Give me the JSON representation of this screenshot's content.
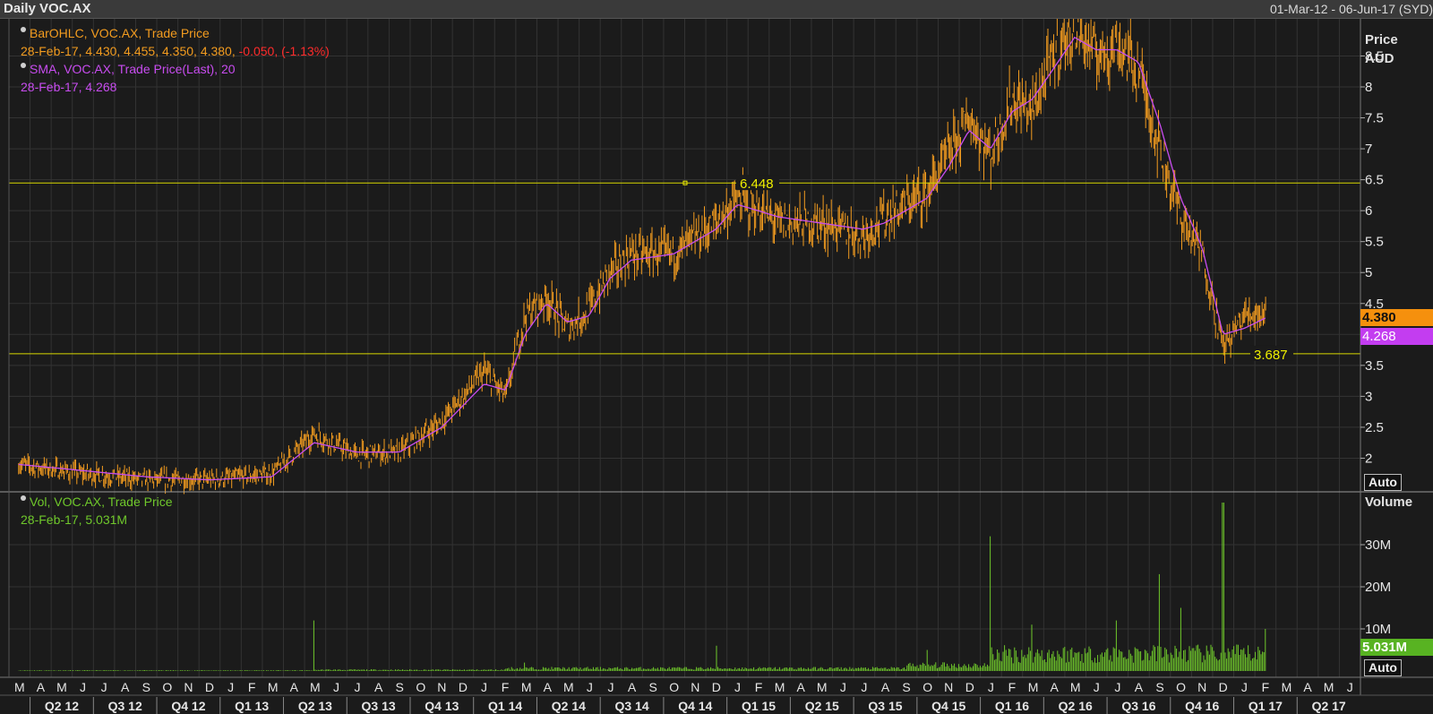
{
  "window": {
    "title": "Daily VOC.AX",
    "date_range": "01-Mar-12 - 06-Jun-17 (SYD)"
  },
  "legend": {
    "price_series": "BarOHLC, VOC.AX, Trade Price",
    "price_values": "28-Feb-17, 4.430, 4.455, 4.350, 4.380,",
    "price_change": "-0.050, (-1.13%)",
    "sma_series": "SMA, VOC.AX, Trade Price(Last),  20",
    "sma_values": "28-Feb-17, 4.268",
    "vol_series": "Vol, VOC.AX, Trade Price",
    "vol_values": "28-Feb-17, 5.031M"
  },
  "axes": {
    "price_title": "Price",
    "price_unit": "AUD",
    "volume_title": "Volume",
    "auto_label": "Auto",
    "price_ticks": [
      "2",
      "2.5",
      "3",
      "3.5",
      "4",
      "4.5",
      "5",
      "5.5",
      "6",
      "6.5",
      "7",
      "7.5",
      "8",
      "8.5"
    ],
    "volume_ticks": [
      "10M",
      "20M",
      "30M"
    ]
  },
  "tags": {
    "last_price": "4.380",
    "sma": "4.268",
    "volume": "5.031M"
  },
  "colors": {
    "background": "#1b1b1b",
    "grid": "#333333",
    "price_bars": "#f39c1f",
    "sma_line": "#c84cf0",
    "volume_bars": "#6fc82b",
    "hline": "#d8d800",
    "negative": "#ff2b2b"
  },
  "chart_data": [
    {
      "type": "line",
      "title": "Daily VOC.AX",
      "ylabel": "Price AUD",
      "ylim": [
        1.5,
        9.1
      ],
      "x_months": [
        "M",
        "A",
        "M",
        "J",
        "J",
        "A",
        "S",
        "O",
        "N",
        "D",
        "J",
        "F",
        "M",
        "A",
        "M",
        "J",
        "J",
        "A",
        "S",
        "O",
        "N",
        "D",
        "J",
        "F",
        "M",
        "A",
        "M",
        "J",
        "J",
        "A",
        "S",
        "O",
        "N",
        "D",
        "J",
        "F",
        "M",
        "A",
        "M",
        "J",
        "J",
        "A",
        "S",
        "O",
        "N",
        "D",
        "J",
        "F",
        "M",
        "A",
        "M",
        "J",
        "J",
        "A",
        "S",
        "O",
        "N",
        "D",
        "J",
        "F",
        "M",
        "A",
        "M",
        "J"
      ],
      "x_quarters": [
        "Q2 12",
        "Q3 12",
        "Q4 12",
        "Q1 13",
        "Q2 13",
        "Q3 13",
        "Q4 13",
        "Q1 14",
        "Q2 14",
        "Q3 14",
        "Q4 14",
        "Q1 15",
        "Q2 15",
        "Q3 15",
        "Q4 15",
        "Q1 16",
        "Q2 16",
        "Q3 16",
        "Q4 16",
        "Q1 17",
        "Q2 17"
      ],
      "series": [
        {
          "name": "BarOHLC, VOC.AX, Trade Price",
          "x": [
            "2012-03",
            "2012-06",
            "2012-09",
            "2012-12",
            "2013-03",
            "2013-05",
            "2013-07",
            "2013-09",
            "2013-11",
            "2014-01",
            "2014-02",
            "2014-03",
            "2014-04",
            "2014-05",
            "2014-06",
            "2014-07",
            "2014-08",
            "2014-10",
            "2014-12",
            "2015-01",
            "2015-03",
            "2015-05",
            "2015-07",
            "2015-08",
            "2015-10",
            "2015-11",
            "2015-12",
            "2016-01",
            "2016-02",
            "2016-03",
            "2016-04",
            "2016-05",
            "2016-06",
            "2016-07",
            "2016-08",
            "2016-09",
            "2016-10",
            "2016-11",
            "2016-12",
            "2017-01",
            "2017-02"
          ],
          "values": [
            1.9,
            1.75,
            1.65,
            1.65,
            1.75,
            2.4,
            2.05,
            2.1,
            2.6,
            3.4,
            3.0,
            4.3,
            4.6,
            4.1,
            4.4,
            5.0,
            5.3,
            5.3,
            5.8,
            6.2,
            5.8,
            5.8,
            5.6,
            5.9,
            6.3,
            6.9,
            7.5,
            6.9,
            7.8,
            7.6,
            8.5,
            9.0,
            8.5,
            8.7,
            8.3,
            7.0,
            5.9,
            5.3,
            3.8,
            4.3,
            4.4
          ]
        },
        {
          "name": "SMA, VOC.AX, Trade Price(Last),  20",
          "x": [
            "2012-03",
            "2012-06",
            "2012-09",
            "2012-12",
            "2013-03",
            "2013-05",
            "2013-07",
            "2013-09",
            "2013-11",
            "2014-01",
            "2014-02",
            "2014-03",
            "2014-04",
            "2014-05",
            "2014-06",
            "2014-07",
            "2014-08",
            "2014-10",
            "2014-12",
            "2015-01",
            "2015-03",
            "2015-05",
            "2015-07",
            "2015-08",
            "2015-10",
            "2015-11",
            "2015-12",
            "2016-01",
            "2016-02",
            "2016-03",
            "2016-04",
            "2016-05",
            "2016-06",
            "2016-07",
            "2016-08",
            "2016-09",
            "2016-10",
            "2016-11",
            "2016-12",
            "2017-01",
            "2017-02"
          ],
          "values": [
            1.9,
            1.8,
            1.7,
            1.65,
            1.7,
            2.25,
            2.1,
            2.1,
            2.5,
            3.2,
            3.1,
            4.0,
            4.5,
            4.2,
            4.3,
            4.9,
            5.2,
            5.3,
            5.7,
            6.1,
            5.9,
            5.8,
            5.7,
            5.8,
            6.2,
            6.7,
            7.3,
            7.0,
            7.6,
            7.8,
            8.3,
            8.8,
            8.6,
            8.6,
            8.4,
            7.4,
            6.2,
            5.4,
            4.0,
            4.1,
            4.27
          ]
        }
      ],
      "annotations": [
        {
          "type": "hline",
          "value": 6.448,
          "label": "6.448"
        },
        {
          "type": "hline",
          "value": 3.687,
          "label": "3.687"
        }
      ]
    },
    {
      "type": "bar",
      "title": "Vol, VOC.AX, Trade Price",
      "ylabel": "Volume",
      "ylim": [
        0,
        40
      ],
      "unit": "M",
      "x": [
        "2013-05",
        "2014-03",
        "2014-12",
        "2015-10",
        "2016-01",
        "2016-03",
        "2016-07",
        "2016-09",
        "2016-10",
        "2016-12",
        "2017-02"
      ],
      "values": [
        12,
        2,
        6,
        5,
        32,
        11,
        12,
        23,
        15,
        40,
        10
      ]
    }
  ]
}
